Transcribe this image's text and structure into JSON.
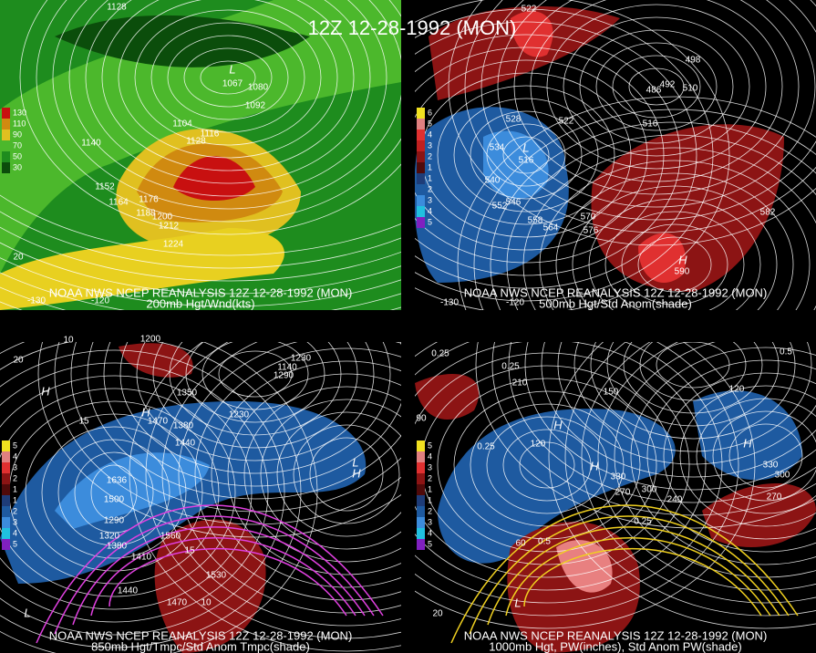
{
  "title": "12Z 12-28-1992 (MON)",
  "panels": [
    {
      "caption": "NOAA NWS NCEP REANALYSIS 12Z 12-28-1992 (MON)",
      "subcaption": "200mb Hgt/Wnd(kts)",
      "legend": [
        "130",
        "110",
        "90",
        "70",
        "50",
        "30"
      ],
      "labels": [
        "1128",
        "1080",
        "1092",
        "1104",
        "1116",
        "1128",
        "1140",
        "1152",
        "1164",
        "1176",
        "1188",
        "1200",
        "1212",
        "1224",
        "L",
        "1067",
        "20",
        "-130",
        "-120"
      ]
    },
    {
      "caption": "NOAA NWS NCEP REANALYSIS 12Z 12-28-1992 (MON)",
      "subcaption": "500mb Hgt/Std Anom(shade)",
      "legend": [
        "6",
        "5",
        "4",
        "3",
        "2",
        "1",
        "1",
        "2",
        "3",
        "4",
        "5"
      ],
      "labels": [
        "522",
        "498",
        "486",
        "492",
        "510",
        "528",
        "522",
        "516",
        "534",
        "L",
        "516",
        "540",
        "546",
        "552",
        "558",
        "564",
        "570",
        "576",
        "582",
        "H",
        "590",
        "-130",
        "-120"
      ]
    },
    {
      "caption": "NOAA NWS NCEP REANALYSIS 12Z 12-28-1992 (MON)",
      "subcaption": "850mb Hgt/Tmpc/Std Anom Tmpc(shade)",
      "legend": [
        "5",
        "4",
        "3",
        "2",
        "1",
        "1",
        "2",
        "3",
        "4",
        "5"
      ],
      "labels": [
        "10",
        "1200",
        "1230",
        "1140",
        "1290",
        "1350",
        "1470",
        "1380",
        "1440",
        "1230",
        "1500",
        "1290",
        "1320",
        "1380",
        "1410",
        "1440",
        "1470",
        "1530",
        "1560",
        "15",
        "10",
        "15",
        "H",
        "H",
        "L",
        "H",
        "1636",
        "L",
        "20"
      ]
    },
    {
      "caption": "NOAA NWS NCEP REANALYSIS 12Z 12-28-1992 (MON)",
      "subcaption": "1000mb Hgt, PW(inches), Std Anom PW(shade)",
      "legend": [
        "5",
        "4",
        "3",
        "2",
        "1",
        "1",
        "2",
        "3",
        "4",
        "5"
      ],
      "labels": [
        "0.25",
        "0.25",
        "210",
        "150",
        "120",
        "90",
        "0.25",
        "H",
        "120",
        "H",
        "330",
        "300",
        "270",
        "240",
        "0.25",
        "0.5",
        "60",
        "H",
        "330",
        "300",
        "270",
        "0.5",
        "L",
        "20"
      ]
    }
  ]
}
